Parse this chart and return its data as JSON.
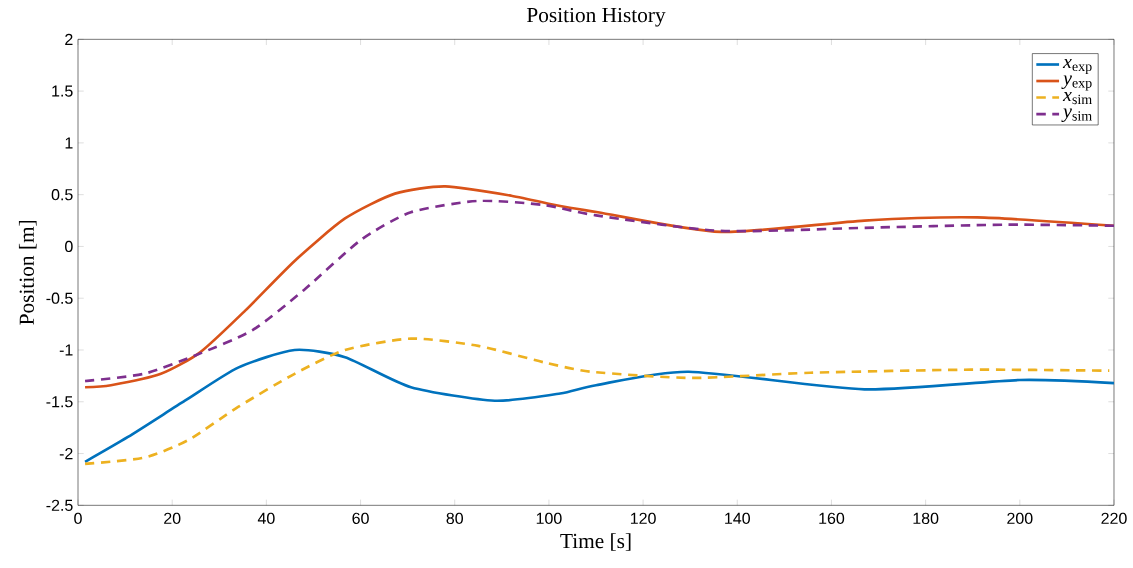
{
  "chart_data": {
    "type": "line",
    "title": "Position History",
    "xlabel": "Time [s]",
    "ylabel": "Position [m]",
    "xlim": [
      0,
      220
    ],
    "ylim": [
      -2.5,
      2
    ],
    "xticks": [
      0,
      20,
      40,
      60,
      80,
      100,
      120,
      140,
      160,
      180,
      200,
      220
    ],
    "yticks": [
      -2.5,
      -2,
      -1.5,
      -1,
      -0.5,
      0,
      0.5,
      1,
      1.5,
      2
    ],
    "grid": false,
    "legend": "top right",
    "marker": "none",
    "series": [
      {
        "name": "*x*$_{exp}$",
        "color": "#0072bd",
        "line_style": "solid",
        "x": [
          1.5,
          10.6,
          22.7,
          34,
          46,
          56.7,
          70.7,
          88.5,
          102.4,
          110,
          129.7,
          167,
          200,
          220
        ],
        "values": [
          -2.08,
          -1.84,
          -1.49,
          -1.17,
          -1.0,
          -1.07,
          -1.36,
          -1.49,
          -1.42,
          -1.34,
          -1.21,
          -1.38,
          -1.29,
          -1.32
        ]
      },
      {
        "name": "*y*$_{exp}$",
        "color": "#d95319",
        "line_style": "solid",
        "x": [
          1.5,
          7,
          17.6,
          26,
          35.5,
          46,
          56.7,
          67.3,
          78,
          92,
          102.4,
          110.4,
          136.5,
          167,
          191,
          220
        ],
        "values": [
          -1.36,
          -1.34,
          -1.23,
          -1.02,
          -0.62,
          -0.14,
          0.27,
          0.51,
          0.58,
          0.49,
          0.39,
          0.33,
          0.14,
          0.25,
          0.28,
          0.2
        ]
      },
      {
        "name": "*x*$_{sim}$",
        "color": "#edb120",
        "line_style": "dashed",
        "x": [
          1.5,
          14,
          23.4,
          34,
          46,
          56.7,
          70.7,
          85,
          99,
          109,
          130.4,
          155.5,
          189.6,
          219
        ],
        "values": [
          -2.1,
          -2.04,
          -1.87,
          -1.55,
          -1.23,
          -1.0,
          -0.89,
          -0.96,
          -1.12,
          -1.21,
          -1.27,
          -1.22,
          -1.19,
          -1.2
        ]
      },
      {
        "name": "*y*$_{sim}$",
        "color": "#7e2f8e",
        "line_style": "dashed",
        "x": [
          1.5,
          14,
          25,
          37,
          48,
          60,
          70.7,
          85,
          99,
          110,
          136.5,
          167,
          197,
          220
        ],
        "values": [
          -1.3,
          -1.23,
          -1.05,
          -0.81,
          -0.42,
          0.06,
          0.33,
          0.44,
          0.4,
          0.3,
          0.15,
          0.18,
          0.21,
          0.2
        ]
      }
    ]
  }
}
